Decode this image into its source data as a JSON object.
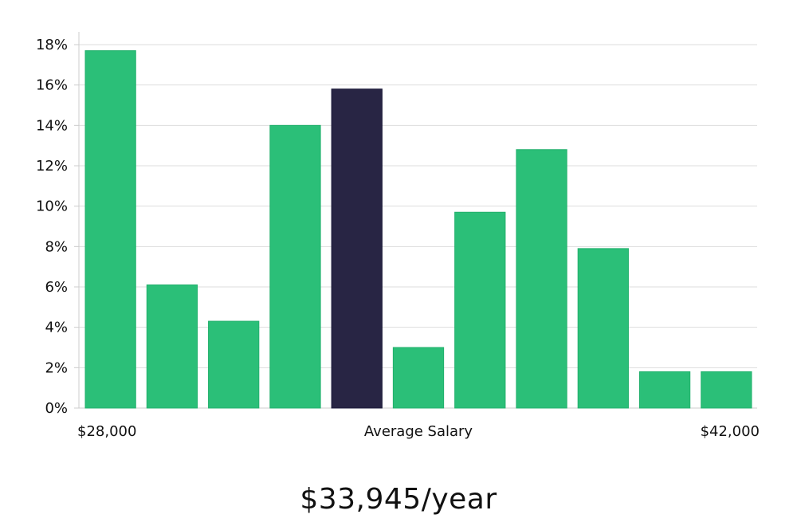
{
  "chart_data": {
    "type": "bar",
    "values": [
      17.7,
      6.1,
      4.3,
      14.0,
      15.8,
      3.0,
      9.7,
      12.8,
      7.9,
      1.8,
      1.8
    ],
    "highlight_index": 4,
    "ylim": [
      0,
      18
    ],
    "yticks": [
      "0%",
      "2%",
      "4%",
      "6%",
      "8%",
      "10%",
      "12%",
      "14%",
      "16%",
      "18%"
    ],
    "y_tick_values": [
      0,
      2,
      4,
      6,
      8,
      10,
      12,
      14,
      16,
      18
    ],
    "x_start_label": "$28,000",
    "x_center_label": "Average Salary",
    "x_end_label": "$42,000",
    "grid": true,
    "colors": {
      "bar": "#2bbf78",
      "bar_highlight": "#282544",
      "grid": "#dddddd",
      "axis": "#cccccc"
    }
  },
  "summary": {
    "average_salary": "$33,945/year"
  }
}
